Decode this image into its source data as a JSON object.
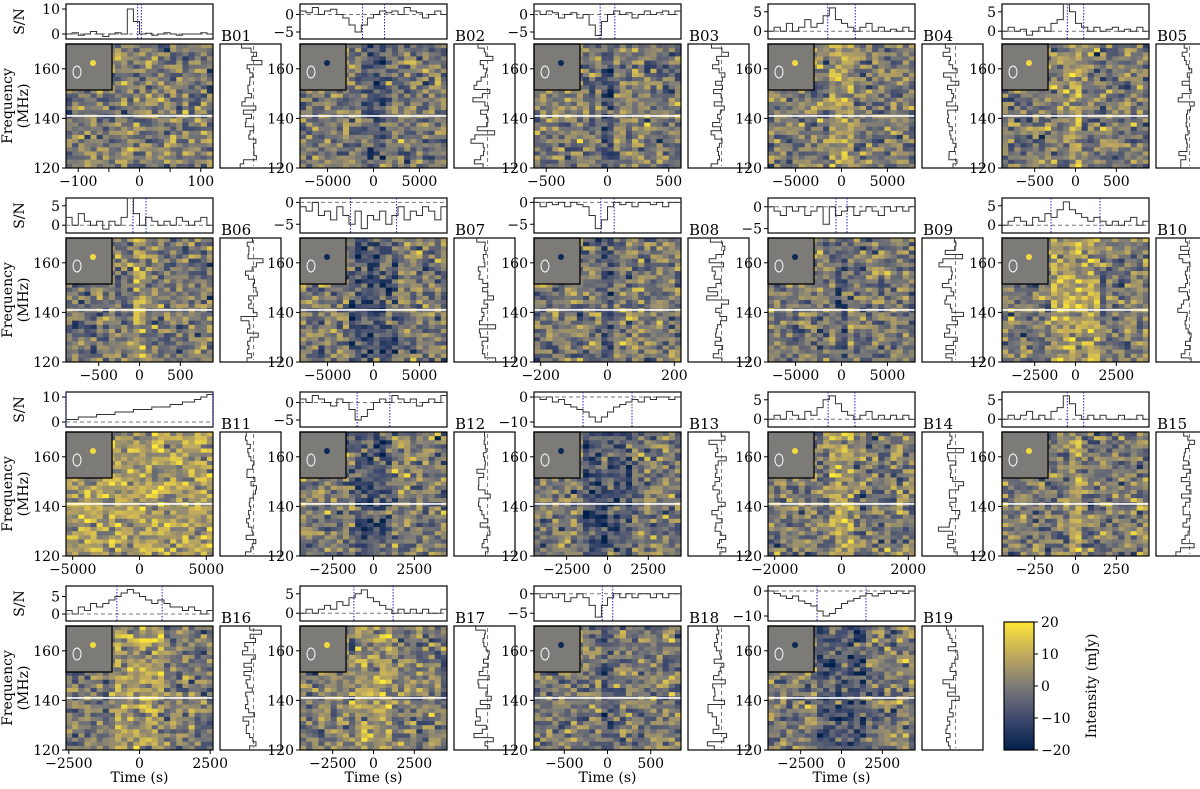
{
  "figure": {
    "labels": {
      "sn": "S/N",
      "frequency": "Frequency",
      "frequency_unit": "(MHz)",
      "time": "Time (s)"
    },
    "colorbar": {
      "label": "Intensity (mJy)",
      "ticks": [
        20,
        10,
        0,
        -10,
        -20
      ],
      "colors": [
        "#00204c",
        "#3f4a6e",
        "#7c7b78",
        "#c2ab5c",
        "#fde737"
      ]
    },
    "freq_ticks": [
      120,
      140,
      160
    ],
    "freq_range": [
      120,
      170
    ]
  },
  "chart_data": [
    {
      "id": "B01",
      "type": "heatmap",
      "x_range": [
        -120,
        120
      ],
      "x_ticks": [
        -100,
        -50,
        0,
        50,
        100
      ],
      "sn_range": [
        -2,
        12
      ],
      "sn_ticks": [
        0,
        10
      ],
      "window": [
        -3,
        3
      ],
      "profile": [
        0,
        0.5,
        -0.5,
        0,
        1,
        0,
        -1,
        0,
        0.5,
        0,
        10,
        5,
        0,
        0.3,
        -0.5,
        0,
        0.5,
        0,
        -0.5,
        0,
        0,
        0,
        0.5,
        0
      ]
    },
    {
      "id": "B02",
      "type": "heatmap",
      "x_range": [
        -8000,
        8000
      ],
      "x_ticks": [
        -5000,
        0,
        5000
      ],
      "sn_range": [
        -7,
        3
      ],
      "sn_ticks": [
        -5,
        0
      ],
      "window": [
        -1200,
        1200
      ],
      "profile": [
        1,
        0.5,
        2,
        0,
        1,
        1.5,
        0,
        -1,
        -3,
        -5,
        -3,
        -1,
        0,
        1,
        0.5,
        1,
        0,
        2,
        1,
        0.5,
        -1,
        0,
        1,
        0
      ]
    },
    {
      "id": "B03",
      "type": "heatmap",
      "x_range": [
        -600,
        600
      ],
      "x_ticks": [
        -500,
        0,
        500
      ],
      "sn_range": [
        -7,
        3
      ],
      "sn_ticks": [
        -5,
        0
      ],
      "window": [
        -60,
        60
      ],
      "profile": [
        1,
        0,
        1,
        0.5,
        -1,
        0,
        0.5,
        -1,
        0,
        -3,
        -6,
        -2,
        0,
        1,
        0,
        0.5,
        -1,
        0,
        1,
        0,
        0.5,
        1,
        0,
        1
      ]
    },
    {
      "id": "B04",
      "type": "heatmap",
      "x_range": [
        -8000,
        8000
      ],
      "x_ticks": [
        -5000,
        0,
        5000
      ],
      "sn_range": [
        -2,
        7
      ],
      "sn_ticks": [
        0,
        5
      ],
      "window": [
        -1500,
        1500
      ],
      "profile": [
        0,
        1,
        0,
        2,
        0,
        1,
        3,
        1,
        2,
        4,
        6,
        3,
        2,
        1,
        0,
        1,
        2,
        0,
        1,
        0,
        0.5,
        0,
        1,
        0
      ]
    },
    {
      "id": "B05",
      "type": "heatmap",
      "x_range": [
        -900,
        900
      ],
      "x_ticks": [
        -500,
        0,
        500
      ],
      "sn_range": [
        -2,
        7
      ],
      "sn_ticks": [
        0,
        5
      ],
      "window": [
        -100,
        100
      ],
      "profile": [
        0,
        1,
        0,
        0.5,
        -1,
        0,
        1,
        0,
        2,
        3,
        7,
        5,
        2,
        1,
        0,
        1,
        0,
        0.5,
        1,
        0,
        0.5,
        0,
        1,
        0
      ]
    },
    {
      "id": "B06",
      "type": "heatmap",
      "x_range": [
        -900,
        900
      ],
      "x_ticks": [
        -500,
        0,
        500
      ],
      "sn_range": [
        -2,
        7
      ],
      "sn_ticks": [
        0,
        5
      ],
      "window": [
        -80,
        80
      ],
      "profile": [
        2,
        0,
        3,
        1,
        0,
        1,
        -1,
        1,
        0,
        2,
        7,
        3,
        0,
        2,
        1,
        0,
        1,
        0,
        2,
        1,
        0,
        1,
        2,
        0
      ]
    },
    {
      "id": "B07",
      "type": "heatmap",
      "x_range": [
        -8000,
        8000
      ],
      "x_ticks": [
        -5000,
        0,
        5000
      ],
      "sn_range": [
        -7,
        1
      ],
      "sn_ticks": [
        -5,
        0
      ],
      "window": [
        -2500,
        2500
      ],
      "profile": [
        -1,
        -2,
        0,
        -3,
        -2,
        -4,
        -1,
        -3,
        -5,
        -2,
        -6,
        -3,
        -4,
        -2,
        -5,
        -3,
        -1,
        -4,
        -2,
        -3,
        -1,
        -2,
        -4,
        -1
      ]
    },
    {
      "id": "B08",
      "type": "heatmap",
      "x_range": [
        -220,
        220
      ],
      "x_ticks": [
        -200,
        0,
        200
      ],
      "sn_range": [
        -7,
        1
      ],
      "sn_ticks": [
        -5,
        0
      ],
      "window": [
        -20,
        20
      ],
      "profile": [
        0,
        -1,
        0,
        -0.5,
        0,
        -1,
        0,
        -0.5,
        -1,
        -3,
        -6,
        -4,
        -1,
        0,
        -0.5,
        0,
        -1,
        0,
        0,
        -0.5,
        0,
        -1,
        0,
        0
      ]
    },
    {
      "id": "B09",
      "type": "heatmap",
      "x_range": [
        -8000,
        8000
      ],
      "x_ticks": [
        -5000,
        0,
        5000
      ],
      "sn_range": [
        -6,
        2
      ],
      "sn_ticks": [
        -5,
        0
      ],
      "window": [
        -600,
        600
      ],
      "profile": [
        0,
        -1,
        -2,
        0,
        -1,
        0,
        -2,
        -1,
        0,
        -4,
        0,
        -2,
        -1,
        0,
        -2,
        -1,
        0,
        -1,
        -2,
        0,
        -1,
        0,
        -1,
        0
      ]
    },
    {
      "id": "B10",
      "type": "heatmap",
      "x_range": [
        -4500,
        4500
      ],
      "x_ticks": [
        -2500,
        0,
        2500
      ],
      "sn_range": [
        -2,
        7
      ],
      "sn_ticks": [
        0,
        5
      ],
      "window": [
        -1500,
        1500
      ],
      "profile": [
        0,
        1,
        2,
        1,
        0,
        2,
        1,
        3,
        2,
        4,
        6,
        4,
        3,
        2,
        1,
        2,
        1,
        0,
        1,
        0,
        1,
        2,
        0,
        1
      ]
    },
    {
      "id": "B11",
      "type": "heatmap",
      "x_range": [
        -5500,
        5500
      ],
      "x_ticks": [
        -5000,
        0,
        5000
      ],
      "sn_range": [
        -2,
        12
      ],
      "sn_ticks": [
        0,
        10
      ],
      "window": [
        -5500,
        5500
      ],
      "profile": [
        1,
        1,
        2,
        2,
        2,
        3,
        3,
        3,
        4,
        4,
        4,
        5,
        5,
        5,
        6,
        6,
        6,
        7,
        7,
        8,
        8,
        9,
        10,
        11
      ]
    },
    {
      "id": "B12",
      "type": "heatmap",
      "x_range": [
        -4500,
        4500
      ],
      "x_ticks": [
        -2500,
        0,
        2500
      ],
      "sn_range": [
        -7,
        3
      ],
      "sn_ticks": [
        -5,
        0
      ],
      "window": [
        -1000,
        1000
      ],
      "profile": [
        1,
        0,
        2,
        1,
        0,
        -1,
        1,
        0,
        -2,
        -5,
        -4,
        -2,
        0,
        1,
        0,
        2,
        1,
        0,
        1,
        -1,
        0,
        1,
        0,
        2
      ]
    },
    {
      "id": "B13",
      "type": "heatmap",
      "x_range": [
        -4500,
        4500
      ],
      "x_ticks": [
        -2500,
        0,
        2500
      ],
      "sn_range": [
        -12,
        2
      ],
      "sn_ticks": [
        -10,
        0
      ],
      "window": [
        -1500,
        1500
      ],
      "profile": [
        0,
        -1,
        0,
        -2,
        -1,
        -3,
        -4,
        -5,
        -6,
        -8,
        -10,
        -8,
        -6,
        -4,
        -3,
        -2,
        -1,
        -2,
        0,
        -1,
        0,
        0,
        -1,
        0
      ]
    },
    {
      "id": "B14",
      "type": "heatmap",
      "x_range": [
        -2200,
        2200
      ],
      "x_ticks": [
        -2000,
        0,
        2000
      ],
      "sn_range": [
        -2,
        7
      ],
      "sn_ticks": [
        0,
        5
      ],
      "window": [
        -400,
        400
      ],
      "profile": [
        0,
        1,
        0,
        2,
        1,
        0,
        2,
        1,
        3,
        5,
        6,
        4,
        2,
        1,
        0,
        1,
        2,
        0,
        1,
        0,
        1,
        0,
        1,
        0
      ]
    },
    {
      "id": "B15",
      "type": "heatmap",
      "x_range": [
        -450,
        450
      ],
      "x_ticks": [
        -250,
        0,
        250
      ],
      "sn_range": [
        -2,
        7
      ],
      "sn_ticks": [
        0,
        5
      ],
      "window": [
        -50,
        50
      ],
      "profile": [
        0,
        1,
        0,
        1,
        2,
        0,
        1,
        0,
        2,
        3,
        6,
        4,
        1,
        0,
        1,
        0,
        1,
        0,
        0,
        1,
        0,
        0,
        1,
        0
      ]
    },
    {
      "id": "B16",
      "type": "heatmap",
      "x_range": [
        -2600,
        2600
      ],
      "x_ticks": [
        -2500,
        0,
        2500
      ],
      "sn_range": [
        -2,
        8
      ],
      "sn_ticks": [
        0,
        5
      ],
      "window": [
        -800,
        800
      ],
      "profile": [
        1,
        0,
        2,
        1,
        3,
        2,
        3,
        4,
        5,
        6,
        7,
        6,
        5,
        4,
        3,
        4,
        3,
        2,
        2,
        1,
        2,
        1,
        0,
        1
      ]
    },
    {
      "id": "B17",
      "type": "heatmap",
      "x_range": [
        -4500,
        4500
      ],
      "x_ticks": [
        -2500,
        0,
        2500
      ],
      "sn_range": [
        -2,
        7
      ],
      "sn_ticks": [
        0,
        5
      ],
      "window": [
        -1200,
        1200
      ],
      "profile": [
        0,
        1,
        0,
        1,
        2,
        1,
        3,
        2,
        4,
        5,
        6,
        4,
        3,
        2,
        1,
        0,
        1,
        0,
        1,
        0,
        1,
        0,
        0,
        1
      ]
    },
    {
      "id": "B18",
      "type": "heatmap",
      "x_range": [
        -850,
        850
      ],
      "x_ticks": [
        -500,
        0,
        500
      ],
      "sn_range": [
        -7,
        2
      ],
      "sn_ticks": [
        -5,
        0
      ],
      "window": [
        -60,
        60
      ],
      "profile": [
        0,
        -1,
        0,
        -1,
        0,
        -2,
        -1,
        0,
        -1,
        -3,
        -6,
        -3,
        -1,
        0,
        -1,
        0,
        -1,
        0,
        0,
        -1,
        0,
        -1,
        0,
        0
      ]
    },
    {
      "id": "B19",
      "type": "heatmap",
      "x_range": [
        -4500,
        4500
      ],
      "x_ticks": [
        -2500,
        0,
        2500
      ],
      "sn_range": [
        -12,
        2
      ],
      "sn_ticks": [
        -10,
        0
      ],
      "window": [
        -1500,
        1500
      ],
      "profile": [
        0,
        -1,
        -2,
        -3,
        -2,
        -4,
        -5,
        -6,
        -8,
        -10,
        -9,
        -7,
        -5,
        -4,
        -3,
        -2,
        -1,
        -2,
        -1,
        0,
        -1,
        0,
        -1,
        0
      ]
    }
  ]
}
